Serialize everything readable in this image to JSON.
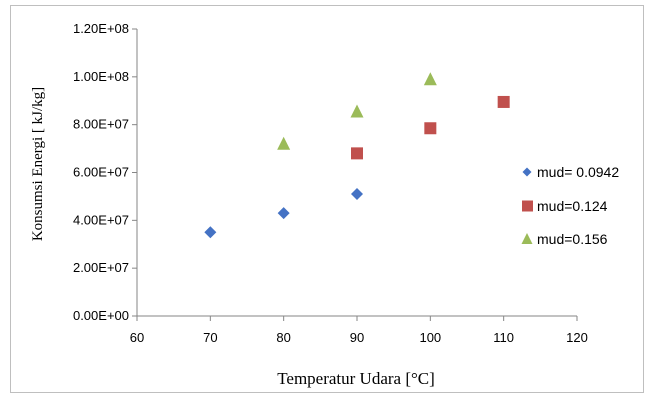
{
  "chart_data": {
    "type": "scatter",
    "title": "",
    "xlabel": "Temperatur Udara [°C]",
    "ylabel": "Konsumsi Energi [ kJ/kg]",
    "xlim": [
      60,
      120
    ],
    "ylim": [
      0,
      120000000
    ],
    "x_ticks": [
      60,
      70,
      80,
      90,
      100,
      110,
      120
    ],
    "y_ticks": [
      0,
      20000000,
      40000000,
      60000000,
      80000000,
      100000000,
      120000000
    ],
    "y_tick_labels": [
      "0.00E+00",
      "2.00E+07",
      "4.00E+07",
      "6.00E+07",
      "8.00E+07",
      "1.00E+08",
      "1.20E+08"
    ],
    "grid": false,
    "legend_position": "right",
    "series": [
      {
        "name": "mud= 0.0942",
        "marker": "diamond",
        "color": "#4472c4",
        "x": [
          70,
          80,
          90
        ],
        "y": [
          35000000,
          43000000,
          51000000
        ]
      },
      {
        "name": "mud=0.124",
        "marker": "square",
        "color": "#c0504d",
        "x": [
          90,
          100,
          110
        ],
        "y": [
          68000000,
          78500000,
          89500000
        ]
      },
      {
        "name": "mud=0.156",
        "marker": "triangle",
        "color": "#9bbb59",
        "x": [
          80,
          90,
          100
        ],
        "y": [
          72000000,
          85500000,
          99000000
        ]
      }
    ]
  }
}
